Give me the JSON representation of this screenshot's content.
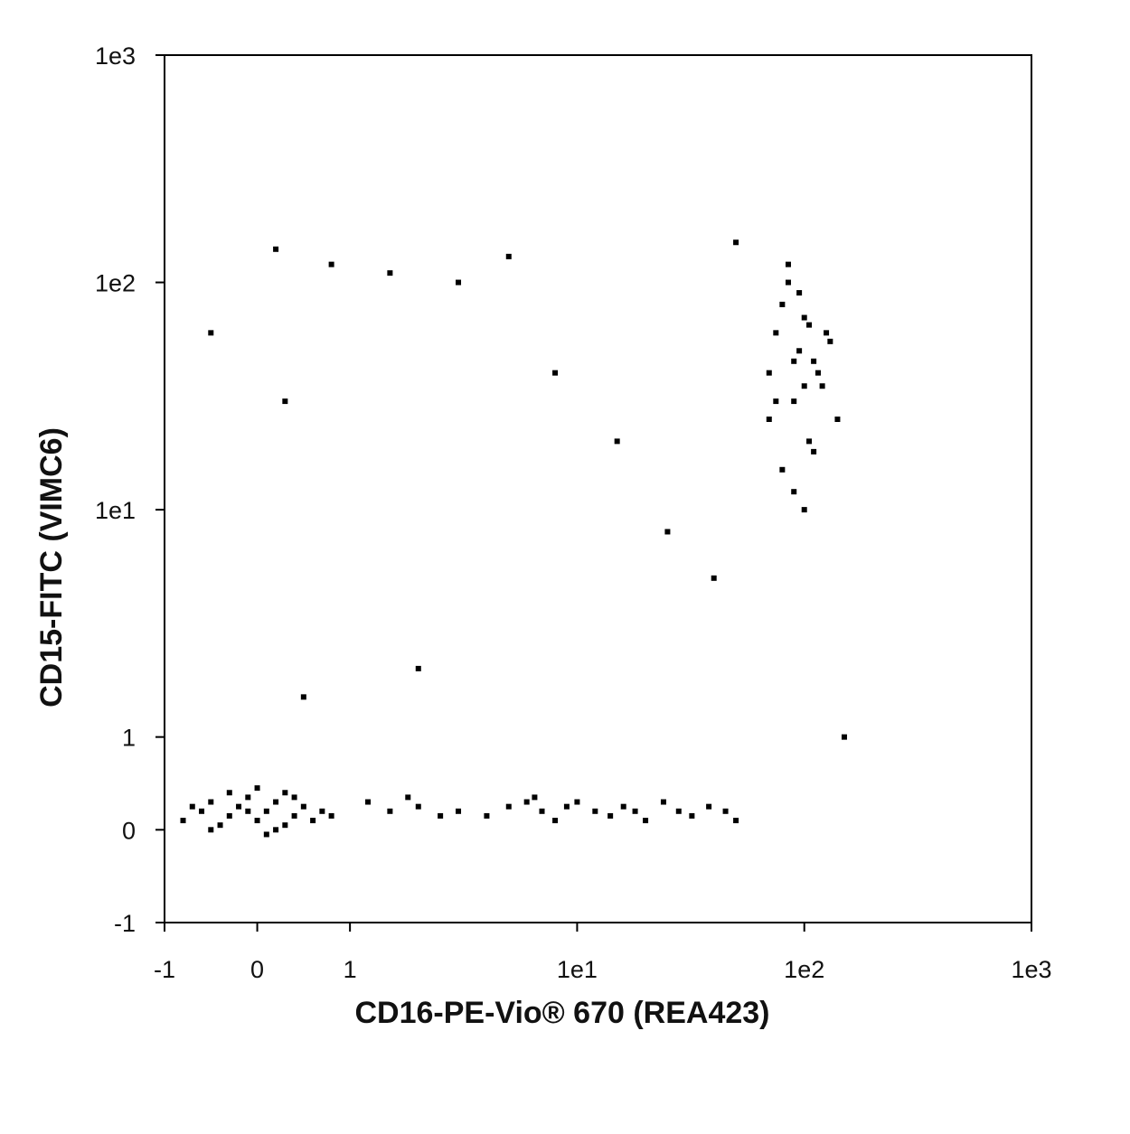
{
  "chart_data": {
    "type": "scatter",
    "x_label": "CD16-PE-Vio® 670 (REA423)",
    "y_label": "CD15-FITC (VIMC6)",
    "scale": "biexponential",
    "color": "#000000",
    "xlim": [
      -1,
      1000
    ],
    "ylim": [
      -1,
      1000
    ],
    "xticks": [
      -1,
      0,
      1,
      {
        "value": 10,
        "label": "1e1"
      },
      {
        "value": 100,
        "label": "1e2"
      },
      {
        "value": 1000,
        "label": "1e3"
      }
    ],
    "yticks": [
      -1,
      0,
      1,
      {
        "value": 10,
        "label": "1e1"
      },
      {
        "value": 100,
        "label": "1e2"
      },
      {
        "value": 1000,
        "label": "1e3"
      }
    ],
    "x": [
      -0.8,
      -0.6,
      -0.5,
      -0.4,
      -0.3,
      -0.2,
      -0.1,
      0,
      0.1,
      0.2,
      0.3,
      0.4,
      0.5,
      0.6,
      0.7,
      -0.7,
      -0.3,
      0,
      0.2,
      0.4,
      -0.5,
      0.1,
      0.3,
      -0.1,
      0.8,
      3,
      4,
      5,
      6,
      7,
      8,
      9,
      10,
      12,
      14,
      16,
      18,
      20,
      24,
      28,
      32,
      38,
      45,
      50,
      6.5,
      1.2,
      1.5,
      2,
      2.5,
      1.8,
      70,
      75,
      80,
      85,
      90,
      95,
      100,
      105,
      110,
      120,
      130,
      140,
      80,
      90,
      100,
      110,
      85,
      95,
      105,
      75,
      115,
      125,
      90,
      100,
      70,
      -0.5,
      0.2,
      0.8,
      1.5,
      3,
      5,
      8,
      15,
      25,
      40,
      2,
      0.5,
      0.3,
      50,
      150
    ],
    "y": [
      0.1,
      0.2,
      0.3,
      0.05,
      0.15,
      0.25,
      0.35,
      0.1,
      0.2,
      0.3,
      0.05,
      0.15,
      0.25,
      0.1,
      0.2,
      0.25,
      0.4,
      0.45,
      0.0,
      0.35,
      0.0,
      -0.05,
      0.4,
      0.2,
      0.15,
      0.2,
      0.15,
      0.25,
      0.3,
      0.2,
      0.1,
      0.25,
      0.3,
      0.2,
      0.15,
      0.25,
      0.2,
      0.1,
      0.3,
      0.2,
      0.15,
      0.25,
      0.2,
      0.1,
      0.35,
      0.3,
      0.2,
      0.25,
      0.15,
      0.35,
      40,
      60,
      80,
      100,
      30,
      50,
      70,
      20,
      45,
      35,
      55,
      25,
      15,
      12,
      10,
      18,
      120,
      90,
      65,
      30,
      40,
      60,
      45,
      35,
      25,
      60,
      140,
      120,
      110,
      100,
      130,
      40,
      20,
      8,
      5,
      2,
      1.5,
      30,
      150,
      1
    ]
  }
}
